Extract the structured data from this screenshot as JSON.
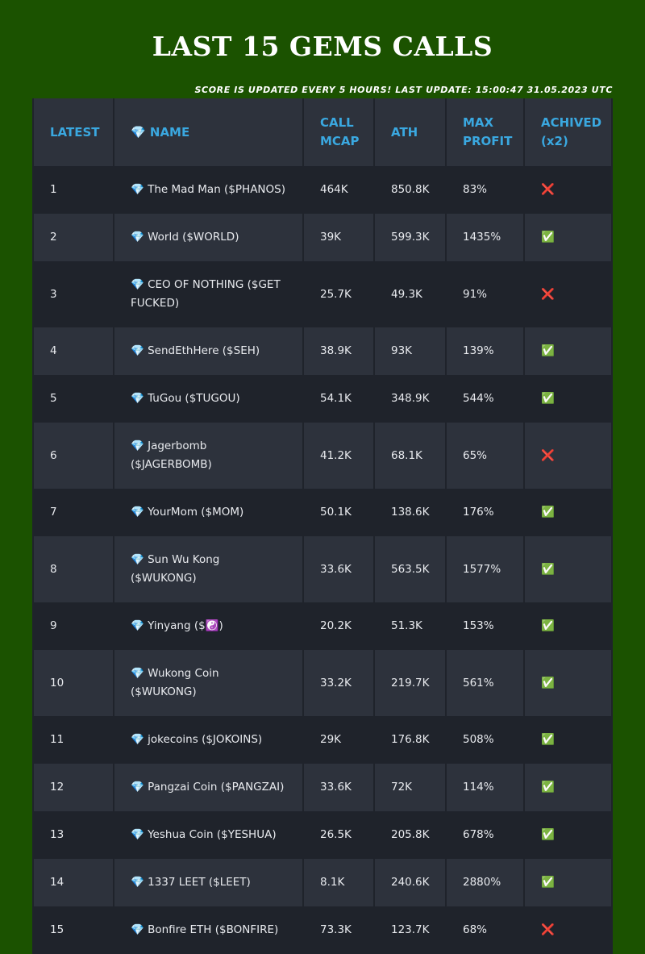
{
  "header": {
    "title": "LAST 15 GEMS CALLS",
    "subtitle": "SCORE IS UPDATED EVERY 5 HOURS! LAST UPDATE: 15:00:47 31.05.2023 UTC"
  },
  "table": {
    "columns": [
      "LATEST",
      "💎 NAME",
      "CALL MCAP",
      "ATH",
      "MAX PROFIT",
      "ACHIVED (x2)"
    ],
    "rows": [
      [
        "1",
        "💎 The Mad Man ($PHANOS)",
        "464K",
        "850.8K",
        "83%",
        "❌"
      ],
      [
        "2",
        "💎 World ($WORLD)",
        "39K",
        "599.3K",
        "1435%",
        "✅"
      ],
      [
        "3",
        "💎 CEO OF NOTHING ($GET FUCKED)",
        "25.7K",
        "49.3K",
        "91%",
        "❌"
      ],
      [
        "4",
        "💎 SendEthHere ($SEH)",
        "38.9K",
        "93K",
        "139%",
        "✅"
      ],
      [
        "5",
        "💎 TuGou ($TUGOU)",
        "54.1K",
        "348.9K",
        "544%",
        "✅"
      ],
      [
        "6",
        "💎 Jagerbomb ($JAGERBOMB)",
        "41.2K",
        "68.1K",
        "65%",
        "❌"
      ],
      [
        "7",
        "💎 YourMom ($MOM)",
        "50.1K",
        "138.6K",
        "176%",
        "✅"
      ],
      [
        "8",
        "💎 Sun Wu Kong ($WUKONG)",
        "33.6K",
        "563.5K",
        "1577%",
        "✅"
      ],
      [
        "9",
        "💎 Yinyang ($☯️)",
        "20.2K",
        "51.3K",
        "153%",
        "✅"
      ],
      [
        "10",
        "💎 Wukong Coin ($WUKONG)",
        "33.2K",
        "219.7K",
        "561%",
        "✅"
      ],
      [
        "11",
        "💎 jokecoins ($JOKOINS)",
        "29K",
        "176.8K",
        "508%",
        "✅"
      ],
      [
        "12",
        "💎 Pangzai Coin ($PANGZAI)",
        "33.6K",
        "72K",
        "114%",
        "✅"
      ],
      [
        "13",
        "💎 Yeshua Coin ($YESHUA)",
        "26.5K",
        "205.8K",
        "678%",
        "✅"
      ],
      [
        "14",
        "💎 1337 LEET ($LEET)",
        "8.1K",
        "240.6K",
        "2880%",
        "✅"
      ],
      [
        "15",
        "💎 Bonfire ETH ($BONFIRE)",
        "73.3K",
        "123.7K",
        "68%",
        "❌"
      ]
    ]
  }
}
